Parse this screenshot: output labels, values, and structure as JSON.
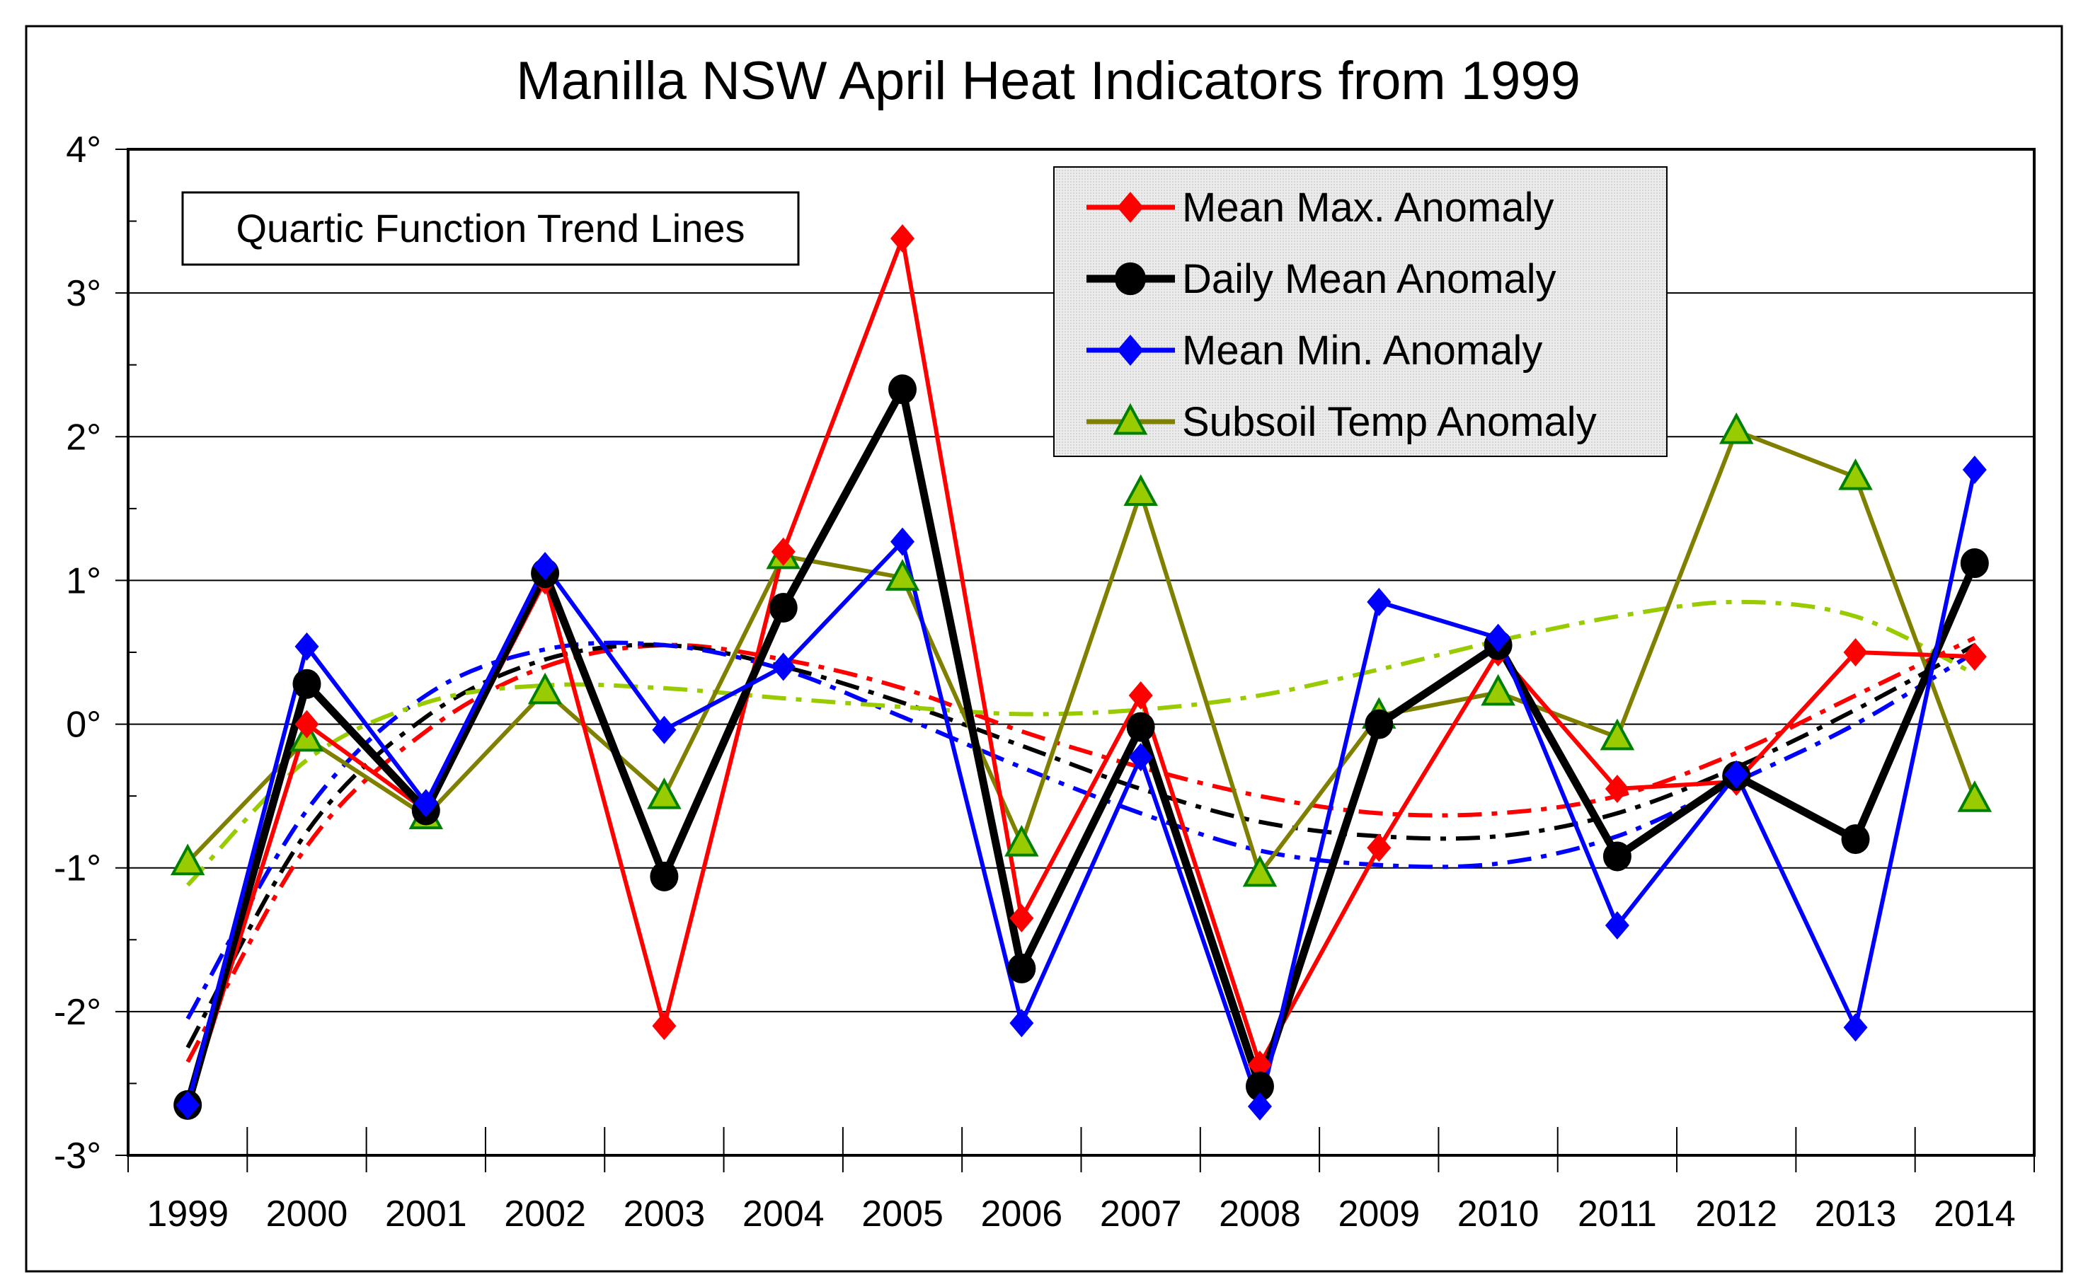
{
  "chart_data": {
    "type": "line",
    "title": "Manilla NSW April Heat Indicators from 1999",
    "annotation": "Quartic Function Trend Lines",
    "xlabel": "",
    "ylabel": "",
    "ylim": [
      -3,
      4
    ],
    "yticks": [
      4,
      3,
      2,
      1,
      0,
      -1,
      -2,
      -3
    ],
    "ytick_labels": [
      "4°",
      "3°",
      "2°",
      "1°",
      "0°",
      "-1°",
      "-2°",
      "-3°"
    ],
    "categories": [
      "1999",
      "2000",
      "2001",
      "2002",
      "2003",
      "2004",
      "2005",
      "2006",
      "2007",
      "2008",
      "2009",
      "2010",
      "2011",
      "2012",
      "2013",
      "2014"
    ],
    "grid": true,
    "legend_position": "top-right",
    "series": [
      {
        "name": "Mean Max. Anomaly",
        "color": "#ff0000",
        "marker": "diamond",
        "values": [
          -2.65,
          0.0,
          -0.6,
          1.0,
          -2.1,
          1.2,
          3.38,
          -1.35,
          0.2,
          -2.37,
          -0.86,
          0.5,
          -0.45,
          -0.4,
          0.5,
          0.47
        ],
        "trend": [
          -2.35,
          -0.85,
          -0.05,
          0.4,
          0.55,
          0.45,
          0.25,
          -0.05,
          -0.3,
          -0.5,
          -0.62,
          -0.62,
          -0.5,
          -0.2,
          0.2,
          0.6
        ]
      },
      {
        "name": "Daily Mean Anomaly",
        "color": "#000000",
        "marker": "circle",
        "values": [
          -2.65,
          0.28,
          -0.6,
          1.05,
          -1.06,
          0.81,
          2.33,
          -1.7,
          -0.02,
          -2.52,
          0.0,
          0.55,
          -0.92,
          -0.36,
          -0.8,
          1.12
        ],
        "trend": [
          -2.25,
          -0.75,
          0.05,
          0.45,
          0.55,
          0.4,
          0.15,
          -0.15,
          -0.45,
          -0.68,
          -0.78,
          -0.78,
          -0.62,
          -0.3,
          0.1,
          0.55
        ]
      },
      {
        "name": "Mean Min. Anomaly",
        "color": "#0000ff",
        "marker": "diamond",
        "values": [
          -2.65,
          0.54,
          -0.55,
          1.1,
          -0.04,
          0.4,
          1.27,
          -2.08,
          -0.23,
          -2.66,
          0.85,
          0.6,
          -1.4,
          -0.35,
          -2.11,
          1.77
        ],
        "trend": [
          -2.05,
          -0.6,
          0.2,
          0.52,
          0.55,
          0.38,
          0.05,
          -0.3,
          -0.62,
          -0.88,
          -0.98,
          -0.97,
          -0.78,
          -0.4,
          0.0,
          0.5
        ]
      },
      {
        "name": "Subsoil Temp Anomaly",
        "color": "#808000",
        "marker_fill": "#99cc00",
        "marker": "triangle",
        "values": [
          -0.96,
          -0.1,
          -0.64,
          0.23,
          -0.5,
          1.17,
          1.02,
          -0.83,
          1.61,
          -1.04,
          0.06,
          0.22,
          -0.09,
          2.04,
          1.72,
          -0.52
        ],
        "trend_color": "#99cc00",
        "trend": [
          -1.12,
          -0.25,
          0.15,
          0.27,
          0.25,
          0.18,
          0.12,
          0.07,
          0.1,
          0.2,
          0.38,
          0.58,
          0.75,
          0.85,
          0.75,
          0.35
        ]
      }
    ]
  }
}
